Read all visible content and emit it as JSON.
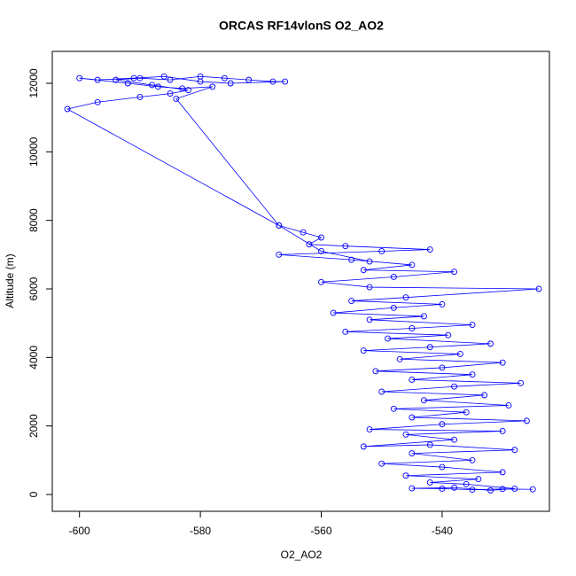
{
  "chart_data": {
    "type": "scatter",
    "title": "ORCAS RF14vlonS O2_AO2",
    "x_label": "O2_AO2",
    "y_label": "Altitude (m)",
    "x": [
      -525,
      -530,
      -535,
      -540,
      -545,
      -538,
      -532,
      -528,
      -536,
      -542,
      -534,
      -546,
      -530,
      -540,
      -550,
      -535,
      -545,
      -528,
      -542,
      -553,
      -538,
      -546,
      -530,
      -552,
      -540,
      -526,
      -545,
      -536,
      -548,
      -529,
      -543,
      -533,
      -550,
      -538,
      -527,
      -545,
      -535,
      -551,
      -540,
      -530,
      -547,
      -537,
      -553,
      -542,
      -532,
      -549,
      -539,
      -556,
      -545,
      -535,
      -552,
      -543,
      -558,
      -548,
      -540,
      -555,
      -546,
      -524,
      -552,
      -560,
      -548,
      -538,
      -553,
      -545,
      -555,
      -567,
      -550,
      -542,
      -556,
      -562,
      -560,
      -563,
      -567,
      -602,
      -597,
      -590,
      -585,
      -582,
      -588,
      -594,
      -590,
      -585,
      -580,
      -576,
      -572,
      -568,
      -566,
      -575,
      -580,
      -586,
      -591,
      -597,
      -600,
      -592,
      -587,
      -583,
      -578,
      -584,
      -567,
      -560,
      -552
    ],
    "series": [
      {
        "name": "O2_AO2",
        "color": "#0000ff",
        "values": [
          150,
          160,
          140,
          170,
          180,
          200,
          120,
          170,
          300,
          350,
          450,
          550,
          650,
          800,
          900,
          1000,
          1200,
          1300,
          1450,
          1400,
          1600,
          1750,
          1850,
          1900,
          2050,
          2150,
          2250,
          2400,
          2500,
          2600,
          2750,
          2900,
          3000,
          3150,
          3250,
          3350,
          3500,
          3600,
          3700,
          3850,
          3950,
          4100,
          4200,
          4300,
          4400,
          4550,
          4650,
          4750,
          4850,
          4950,
          5100,
          5200,
          5300,
          5450,
          5550,
          5650,
          5750,
          6000,
          6050,
          6200,
          6350,
          6500,
          6550,
          6700,
          6850,
          7000,
          7100,
          7150,
          7250,
          7300,
          7500,
          7650,
          7850,
          11250,
          11450,
          11600,
          11700,
          11800,
          11950,
          12100,
          12150,
          12100,
          12200,
          12150,
          12100,
          12050,
          12050,
          12000,
          12050,
          12200,
          12150,
          12100,
          12150,
          12000,
          11900,
          11850,
          11900,
          11550,
          7850,
          7100,
          6800
        ]
      }
    ],
    "xlim": [
      -604.5,
      -522.25
    ],
    "ylim": [
      -491,
      12931
    ],
    "xticks": [
      -600,
      -580,
      -560,
      -540
    ],
    "yticks": [
      0,
      2000,
      4000,
      6000,
      8000,
      10000,
      12000
    ]
  }
}
